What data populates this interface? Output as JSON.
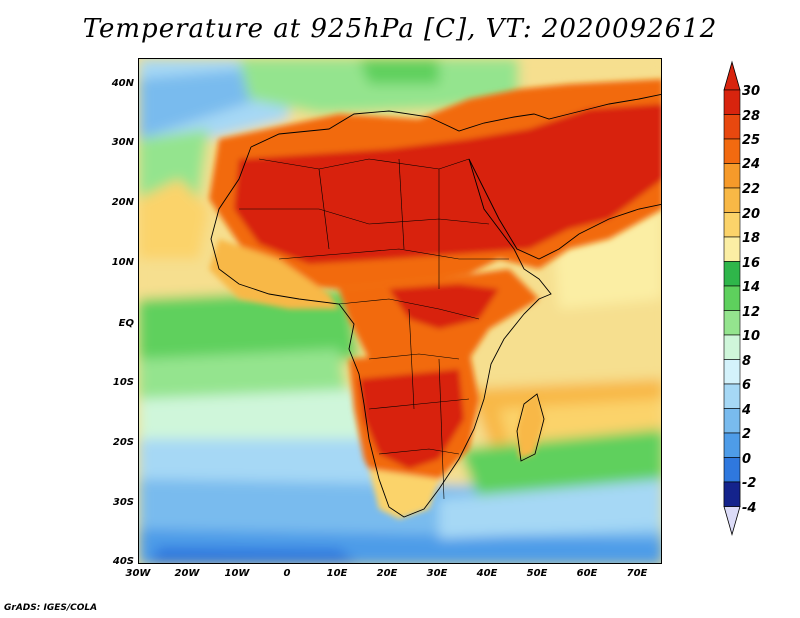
{
  "title": "Temperature at 925hPa [C], VT: 2020092612",
  "credit": "GrADS: IGES/COLA",
  "lat_ticks": [
    "40N",
    "30N",
    "20N",
    "10N",
    "EQ",
    "10S",
    "20S",
    "30S",
    "40S"
  ],
  "lon_ticks": [
    "30W",
    "20W",
    "10W",
    "0",
    "10E",
    "20E",
    "30E",
    "40E",
    "50E",
    "60E",
    "70E"
  ],
  "colorbar": {
    "levels": [
      "30",
      "28",
      "25",
      "24",
      "22",
      "20",
      "18",
      "16",
      "14",
      "12",
      "10",
      "8",
      "6",
      "4",
      "2",
      "0",
      "-2",
      "-4"
    ],
    "colors": [
      "#d8240e",
      "#e8480f",
      "#f26a10",
      "#f69a2a",
      "#f8b846",
      "#fbd36a",
      "#fbeea4",
      "#2fb64a",
      "#5ed05d",
      "#94e48e",
      "#cff6da",
      "#d4f2fb",
      "#a6d8f5",
      "#79bbee",
      "#4e9ce8",
      "#2f78de",
      "#1a4fc4",
      "#14238c"
    ]
  }
}
